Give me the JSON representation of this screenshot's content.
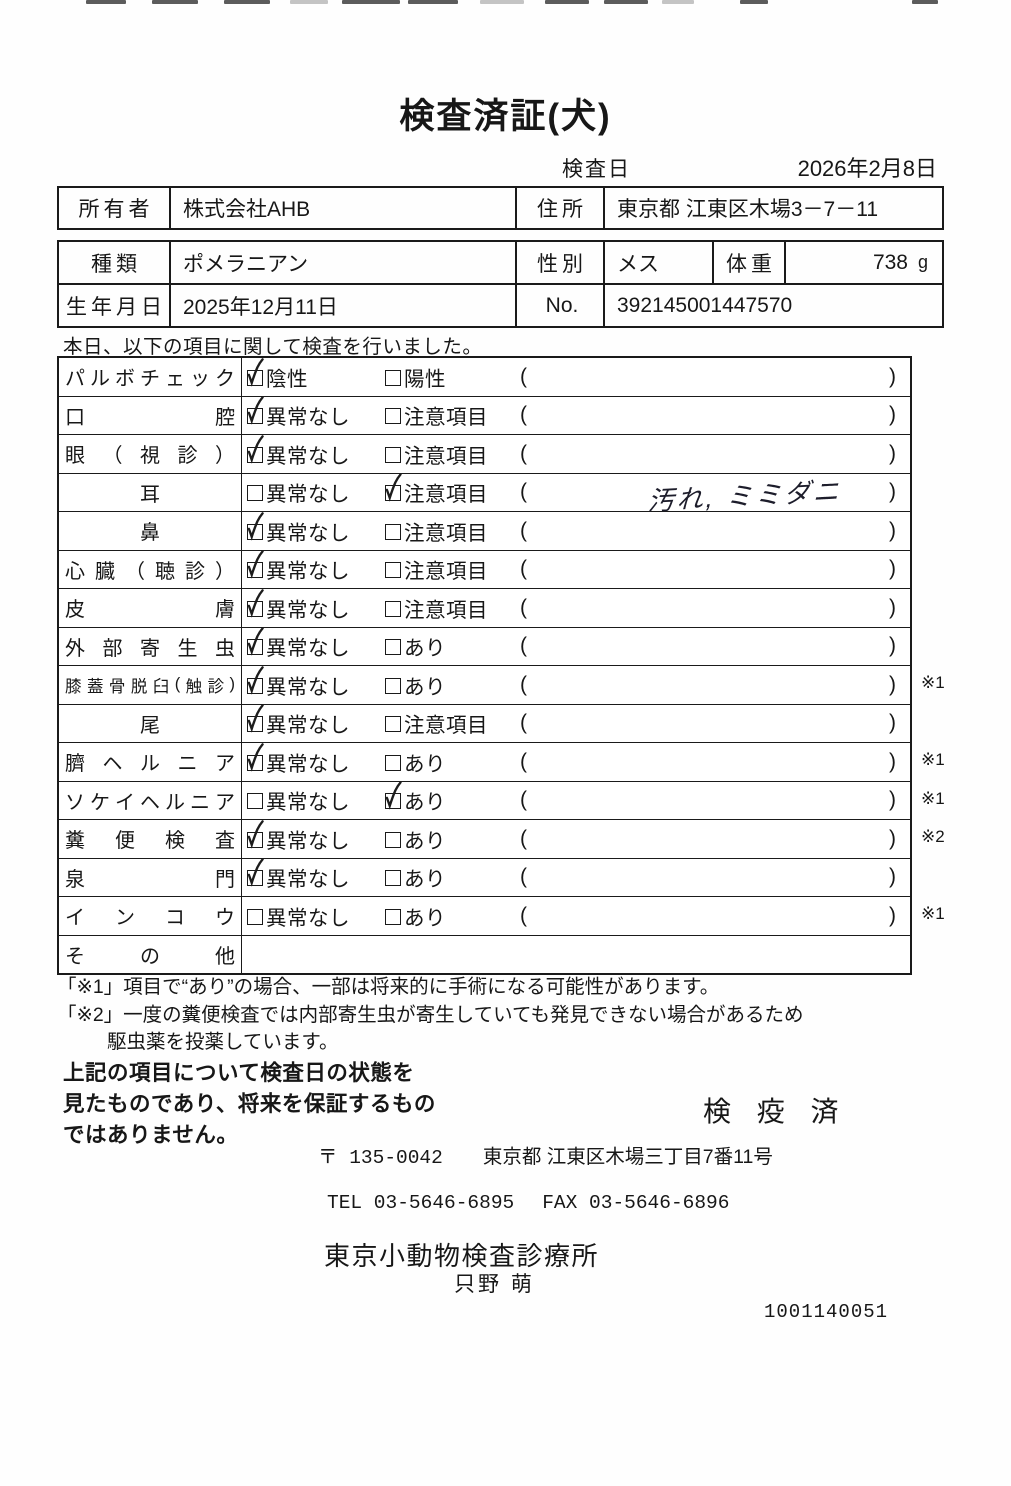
{
  "title": "検査済証(犬)",
  "inspection": {
    "date_label": "検査日",
    "date": "2026年2月8日"
  },
  "owner": {
    "label": "所有者",
    "value": "株式会社AHB",
    "address_label": "住所",
    "address": "東京都 江東区木場3－7－11"
  },
  "pet": {
    "type_label": "種類",
    "type": "ポメラニアン",
    "sex_label": "性別",
    "sex": "メス",
    "weight_label": "体重",
    "weight": "738",
    "weight_unit": "g",
    "birth_label": "生年月日",
    "birth": "2025年12月11日",
    "no_label": "No.",
    "no": "392145001447570"
  },
  "intro": "本日、以下の項目に関して検査を行いました。",
  "table": {
    "paren_open": "(",
    "paren_close": ")",
    "rows": [
      {
        "label": "パルボチェック",
        "opt1": "陰性",
        "opt2": "陽性",
        "checked": 1,
        "note": "",
        "mark": ""
      },
      {
        "label": "口腔",
        "opt1": "異常なし",
        "opt2": "注意項目",
        "checked": 1,
        "note": "",
        "mark": ""
      },
      {
        "label": "眼（視診）",
        "opt1": "異常なし",
        "opt2": "注意項目",
        "checked": 1,
        "note": "",
        "mark": ""
      },
      {
        "label": "耳",
        "opt1": "異常なし",
        "opt2": "注意項目",
        "checked": 2,
        "note": "汚れ, ミミダニ",
        "mark": ""
      },
      {
        "label": "鼻",
        "opt1": "異常なし",
        "opt2": "注意項目",
        "checked": 1,
        "note": "",
        "mark": ""
      },
      {
        "label": "心臓（聴診）",
        "opt1": "異常なし",
        "opt2": "注意項目",
        "checked": 1,
        "note": "",
        "mark": ""
      },
      {
        "label": "皮膚",
        "opt1": "異常なし",
        "opt2": "注意項目",
        "checked": 1,
        "note": "",
        "mark": ""
      },
      {
        "label": "外部寄生虫",
        "opt1": "異常なし",
        "opt2": "あり",
        "checked": 1,
        "note": "",
        "mark": ""
      },
      {
        "label": "膝蓋骨脱臼(触診)",
        "opt1": "異常なし",
        "opt2": "あり",
        "checked": 1,
        "note": "",
        "mark": "※1"
      },
      {
        "label": "尾",
        "opt1": "異常なし",
        "opt2": "注意項目",
        "checked": 1,
        "note": "",
        "mark": ""
      },
      {
        "label": "臍ヘルニア",
        "opt1": "異常なし",
        "opt2": "あり",
        "checked": 1,
        "note": "",
        "mark": "※1"
      },
      {
        "label": "ソケイヘルニア",
        "opt1": "異常なし",
        "opt2": "あり",
        "checked": 2,
        "note": "",
        "mark": "※1"
      },
      {
        "label": "糞便検査",
        "opt1": "異常なし",
        "opt2": "あり",
        "checked": 1,
        "note": "",
        "mark": "※2"
      },
      {
        "label": "泉門",
        "opt1": "異常なし",
        "opt2": "あり",
        "checked": 1,
        "note": "",
        "mark": ""
      },
      {
        "label": "インコウ",
        "opt1": "異常なし",
        "opt2": "あり",
        "checked": 0,
        "note": "",
        "mark": "※1"
      },
      {
        "label": "その他",
        "opt1": "",
        "opt2": "",
        "checked": 0,
        "note": "",
        "mark": ""
      }
    ]
  },
  "footnotes": {
    "line1": "「※1」項目で“あり”の場合、一部は将来的に手術になる可能性があります。",
    "line2": "「※2」一度の糞便検査では内部寄生虫が寄生していても発見できない場合があるため",
    "line3": "駆虫薬を投薬しています。"
  },
  "disclaimer": {
    "line1": "上記の項目について検査日の状態を",
    "line2": "見たものであり、将来を保証するもの",
    "line3": "ではありません。"
  },
  "stamp": "検 疫 済",
  "clinic": {
    "postal_mark": "〒",
    "postal_code": "135-0042",
    "address": "東京都 江東区木場三丁目7番11号",
    "tel": "TEL 03-5646-6895",
    "fax": "FAX 03-5646-6896",
    "name": "東京小動物検査診療所",
    "vet": "只野 萌",
    "code": "1001140051"
  }
}
